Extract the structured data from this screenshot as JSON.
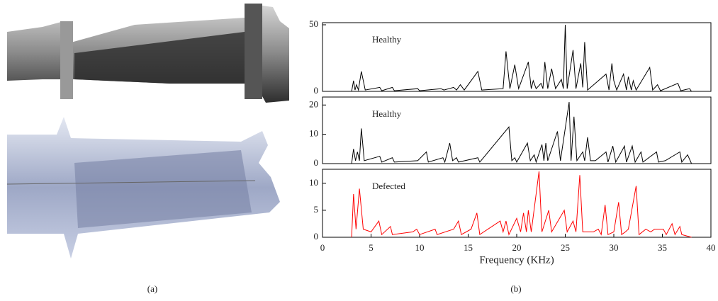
{
  "chart_data": [
    {
      "type": "line",
      "annotation": "Healthy",
      "color": "#000000",
      "xlim": [
        0,
        40
      ],
      "ylim": [
        0,
        50
      ],
      "yticks": [
        0,
        50
      ],
      "x": [
        3,
        3.2,
        3.35,
        3.5,
        3.7,
        4,
        4.4,
        5.9,
        6.1,
        7.2,
        7.4,
        9.8,
        10,
        12.2,
        12.5,
        13.5,
        13.8,
        14.2,
        14.6,
        16,
        16.4,
        18.6,
        18.9,
        19.3,
        19.8,
        20.2,
        21.2,
        21.5,
        21.7,
        22,
        22.5,
        22.7,
        22.9,
        23.2,
        23.6,
        24,
        24.6,
        24.8,
        25,
        25.2,
        25.8,
        26.1,
        26.6,
        26.8,
        27,
        27.3,
        29.2,
        29.5,
        29.8,
        30,
        30.3,
        31,
        31.3,
        31.5,
        31.8,
        32,
        32.3,
        33.7,
        34,
        34.5,
        34.8,
        36.6,
        36.9,
        37.8,
        38
      ],
      "values": [
        0,
        8,
        1,
        5,
        1,
        15,
        1,
        3,
        0.5,
        3,
        0.5,
        2,
        0.5,
        2,
        1,
        3,
        1,
        5,
        1,
        15,
        1,
        2,
        30,
        2,
        20,
        2,
        22,
        2,
        8,
        2,
        6,
        2,
        22,
        2,
        17,
        2,
        9,
        2,
        50,
        2,
        31,
        2,
        21,
        3,
        37,
        1,
        13,
        1,
        21,
        8,
        1,
        13,
        1,
        11,
        1,
        8,
        1,
        18,
        1,
        5,
        0.5,
        6,
        0.5,
        2,
        0
      ]
    },
    {
      "type": "line",
      "annotation": "Healthy",
      "color": "#000000",
      "xlim": [
        0,
        40
      ],
      "ylim": [
        0,
        22
      ],
      "yticks": [
        0,
        10,
        20
      ],
      "x": [
        3,
        3.2,
        3.4,
        3.6,
        3.8,
        4,
        4.3,
        5.9,
        6.1,
        7.2,
        7.4,
        9.8,
        10.7,
        10.9,
        12.4,
        12.6,
        13.1,
        13.4,
        13.8,
        14,
        16,
        16.2,
        19.2,
        19.5,
        19.8,
        20,
        21.1,
        21.4,
        21.8,
        22,
        22.6,
        22.8,
        23,
        23.2,
        24.2,
        24.5,
        25.4,
        25.6,
        25.9,
        26.2,
        26.8,
        27,
        27.3,
        27.6,
        28.1,
        29.2,
        29.4,
        29.9,
        30.2,
        31.1,
        31.3,
        31.9,
        32.2,
        32.8,
        33,
        34.4,
        34.6,
        35.3,
        36.8,
        37,
        37.6,
        38
      ],
      "values": [
        0,
        5,
        1,
        4,
        1,
        12,
        1,
        2.5,
        0.5,
        2,
        0.5,
        1,
        4,
        0.5,
        2,
        0.5,
        7,
        1,
        2,
        0.5,
        2,
        0.5,
        12.5,
        1,
        2,
        0.5,
        7,
        1,
        3,
        0.5,
        6.5,
        1,
        7,
        1,
        11,
        1,
        21,
        1,
        16,
        1,
        4,
        1,
        9,
        1,
        1,
        4,
        0.5,
        6,
        0.5,
        6,
        0.5,
        6,
        0.5,
        4,
        0.5,
        4,
        0.5,
        1,
        4,
        0.5,
        3,
        0
      ]
    },
    {
      "type": "line",
      "annotation": "Defected",
      "color": "#ff0000",
      "xlim": [
        0,
        40
      ],
      "ylim": [
        0,
        12.2
      ],
      "yticks": [
        0,
        5,
        10
      ],
      "xticks": [
        0,
        5,
        10,
        15,
        20,
        25,
        30,
        35,
        40
      ],
      "x_label": "Frequency (KHz)",
      "x": [
        3,
        3.2,
        3.45,
        3.8,
        4.2,
        5,
        5.8,
        6.1,
        7,
        7.2,
        9.3,
        9.7,
        10,
        11.6,
        11.8,
        13.5,
        14,
        14.3,
        15.3,
        15.9,
        16.2,
        18.3,
        18.6,
        18.9,
        19.2,
        20,
        20.4,
        20.7,
        21,
        21.2,
        21.5,
        22.3,
        22.6,
        23.3,
        23.6,
        24.9,
        25.2,
        25.8,
        26.1,
        26.5,
        26.8,
        27.9,
        28.4,
        28.7,
        29.1,
        29.4,
        30,
        30.5,
        30.8,
        31.2,
        31.5,
        32.3,
        32.6,
        33.3,
        33.8,
        34.2,
        35.1,
        35.4,
        36,
        36.3,
        36.8,
        37,
        38
      ],
      "values": [
        0,
        8,
        1.5,
        9,
        1.5,
        1,
        3,
        0.5,
        2,
        0.5,
        1,
        1.5,
        0.5,
        1.5,
        0.5,
        1.5,
        3,
        0.5,
        1.5,
        4.5,
        0.5,
        3,
        1,
        3,
        0.5,
        3.5,
        1,
        4.5,
        1,
        5,
        1,
        12.2,
        1,
        5,
        1,
        5,
        1,
        3,
        1,
        11.5,
        1,
        1,
        1.5,
        0.5,
        6,
        0.5,
        1,
        6.5,
        0.5,
        1,
        1.5,
        9.5,
        0.5,
        1.5,
        1,
        1.5,
        1.5,
        0.5,
        2.5,
        0.5,
        2,
        0.5,
        0
      ]
    }
  ],
  "captions": {
    "a": "(a)",
    "b": "(b)"
  }
}
